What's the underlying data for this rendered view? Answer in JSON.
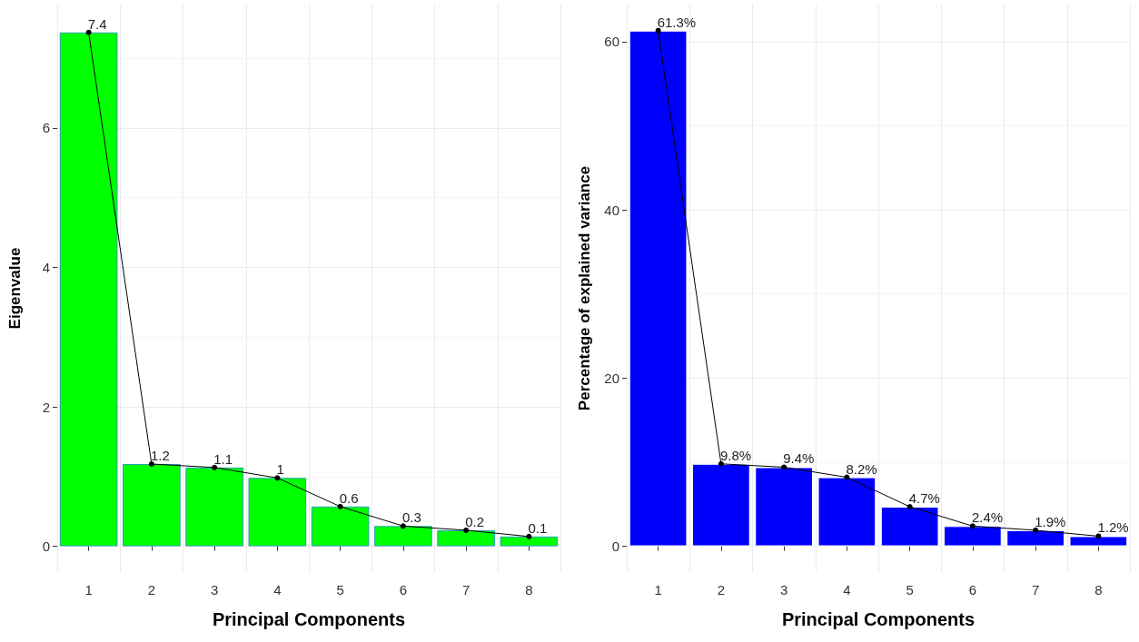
{
  "chart_data": [
    {
      "type": "bar",
      "xlabel": "Principal Components",
      "ylabel": "Eigenvalue",
      "categories": [
        "1",
        "2",
        "3",
        "4",
        "5",
        "6",
        "7",
        "8"
      ],
      "ylim": [
        -0.37,
        7.77
      ],
      "yticks": [
        0,
        2,
        4,
        6
      ],
      "grid": true,
      "marker": "circle",
      "series": [
        {
          "color": "#00ff00",
          "values": [
            7.37,
            1.18,
            1.13,
            0.98,
            0.57,
            0.29,
            0.23,
            0.14
          ]
        },
        {
          "type": "line",
          "color": "#000000",
          "values": [
            7.37,
            1.18,
            1.13,
            0.98,
            0.57,
            0.29,
            0.23,
            0.14
          ],
          "value_labels": [
            "7.4",
            "1.2",
            "1.1",
            "1",
            "0.6",
            "0.3",
            "0.2",
            "0.1"
          ]
        }
      ]
    },
    {
      "type": "bar",
      "xlabel": "Principal Components",
      "ylabel": "Percentage of explained variance",
      "categories": [
        "1",
        "2",
        "3",
        "4",
        "5",
        "6",
        "7",
        "8"
      ],
      "ylim": [
        -3.07,
        64.4
      ],
      "yticks": [
        0,
        20,
        40,
        60
      ],
      "grid": true,
      "marker": "circle",
      "series": [
        {
          "color": "#0000ff",
          "values": [
            61.3,
            9.8,
            9.4,
            8.2,
            4.7,
            2.4,
            1.9,
            1.2
          ]
        },
        {
          "type": "line",
          "color": "#000000",
          "values": [
            61.3,
            9.8,
            9.4,
            8.2,
            4.7,
            2.4,
            1.9,
            1.2
          ],
          "value_labels": [
            "61.3%",
            "9.8%",
            "9.4%",
            "8.2%",
            "4.7%",
            "2.4%",
            "1.9%",
            "1.2%"
          ]
        }
      ]
    }
  ]
}
